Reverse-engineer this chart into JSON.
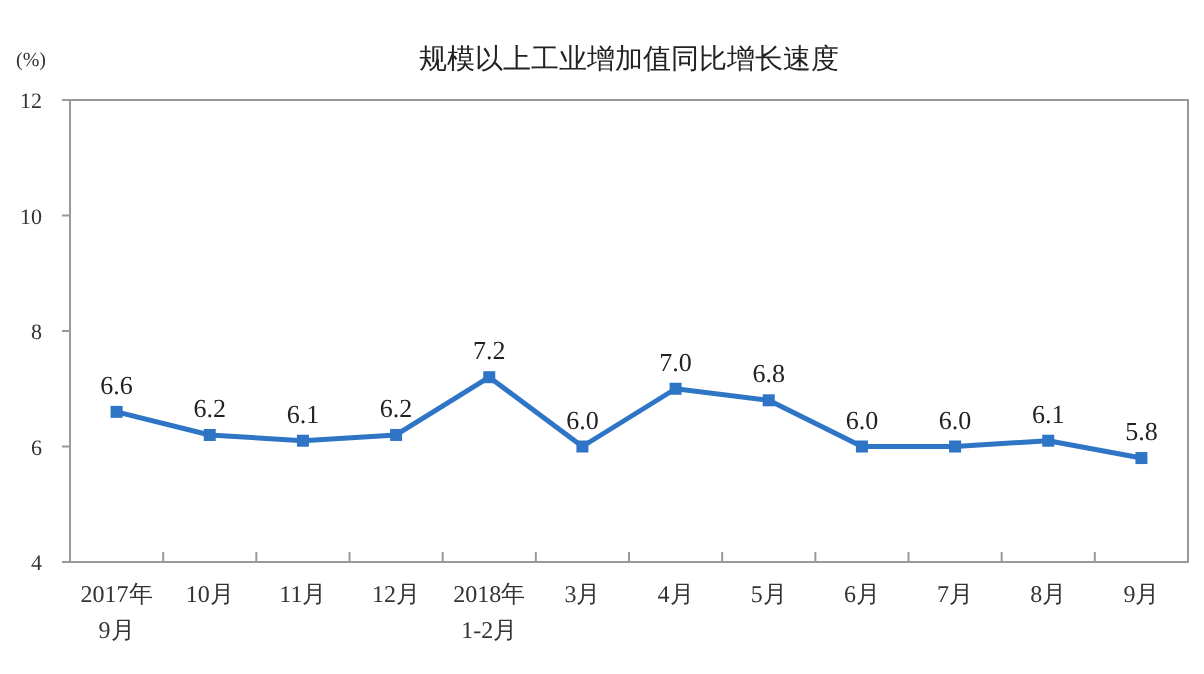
{
  "chart_data": {
    "type": "line",
    "title": "规模以上工业增加值同比增长速度",
    "ylabel": "(%)",
    "categories": [
      "2017年\n9月",
      "10月",
      "11月",
      "12月",
      "2018年\n1-2月",
      "3月",
      "4月",
      "5月",
      "6月",
      "7月",
      "8月",
      "9月"
    ],
    "values": [
      6.6,
      6.2,
      6.1,
      6.2,
      7.2,
      6.0,
      7.0,
      6.8,
      6.0,
      6.0,
      6.1,
      5.8
    ],
    "value_labels": [
      "6.6",
      "6.2",
      "6.1",
      "6.2",
      "7.2",
      "6.0",
      "7.0",
      "6.8",
      "6.0",
      "6.0",
      "6.1",
      "5.8"
    ],
    "color": "#2e75c6",
    "ylim": [
      4,
      12
    ],
    "yticks": [
      4,
      6,
      8,
      10,
      12
    ],
    "marker": "square",
    "line_style": "solid",
    "grid": false
  }
}
